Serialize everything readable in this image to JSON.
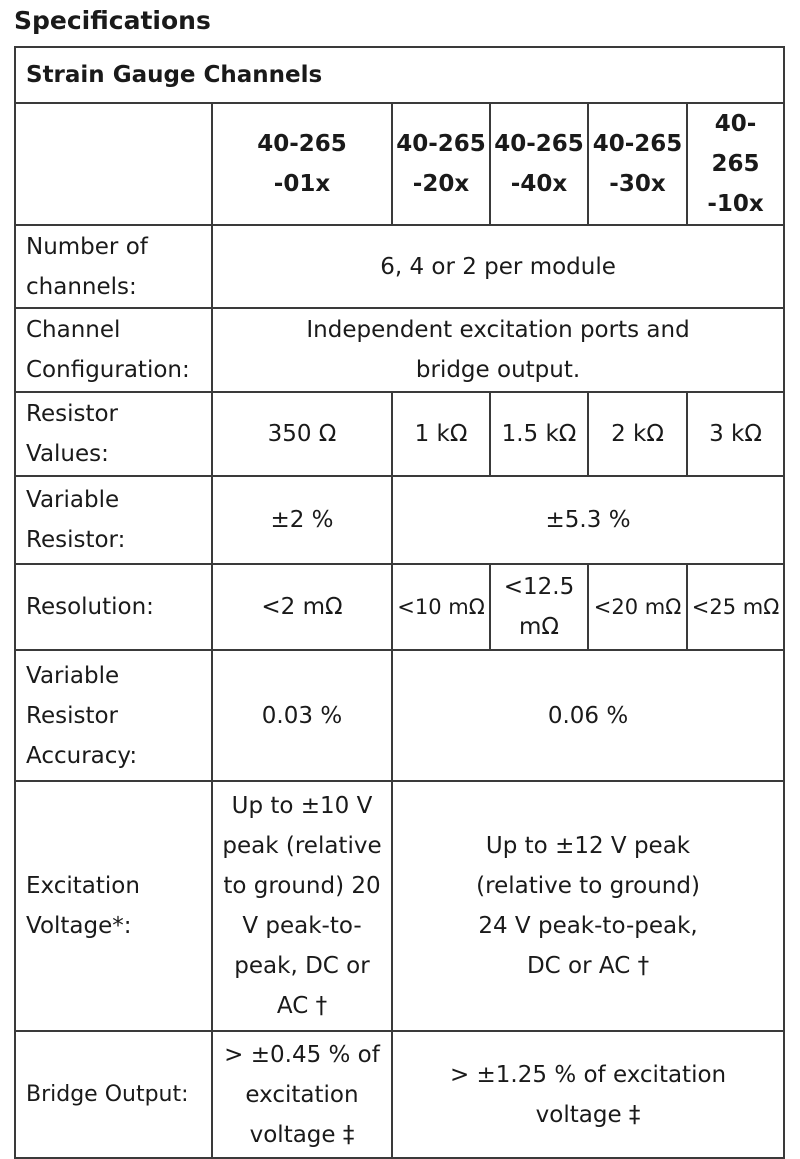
{
  "title": "Specifications",
  "section": "Strain Gauge Channels",
  "models": [
    "40-265 -01x",
    "40-265 -20x",
    "40-265 -40x",
    "40-265 -30x",
    "40-265 -10x"
  ],
  "rows": {
    "channels": {
      "label": "Number of channels:",
      "value": "6, 4 or 2 per module"
    },
    "config": {
      "label": "Channel Configuration:",
      "value": "Independent excitation ports and bridge output."
    },
    "resistor": {
      "label": "Resistor Values:",
      "values": [
        "350 Ω",
        "1 kΩ",
        "1.5 kΩ",
        "2 kΩ",
        "3 kΩ"
      ]
    },
    "varres": {
      "label": "Variable Resistor:",
      "values": [
        "±2 %",
        "±5.3 %"
      ]
    },
    "resolution": {
      "label": "Resolution:",
      "values": [
        "<2 mΩ",
        "<10 mΩ",
        "<12.5 mΩ",
        "<20 mΩ",
        "<25 mΩ"
      ]
    },
    "accuracy": {
      "label": "Variable Resistor Accuracy:",
      "values": [
        "0.03 %",
        "0.06 %"
      ]
    },
    "excitation": {
      "label": "Excitation Voltage*:",
      "values": [
        "Up to ±10 V peak (relative to ground) 20 V peak-to-peak, DC or AC †",
        "Up to ±12 V peak (relative to ground) 24 V peak-to-peak, DC or AC †"
      ]
    },
    "bridge": {
      "label": "Bridge Output:",
      "values": [
        "> ±0.45 % of excitation voltage ‡",
        "> ±1.25 % of excitation voltage ‡"
      ]
    }
  }
}
